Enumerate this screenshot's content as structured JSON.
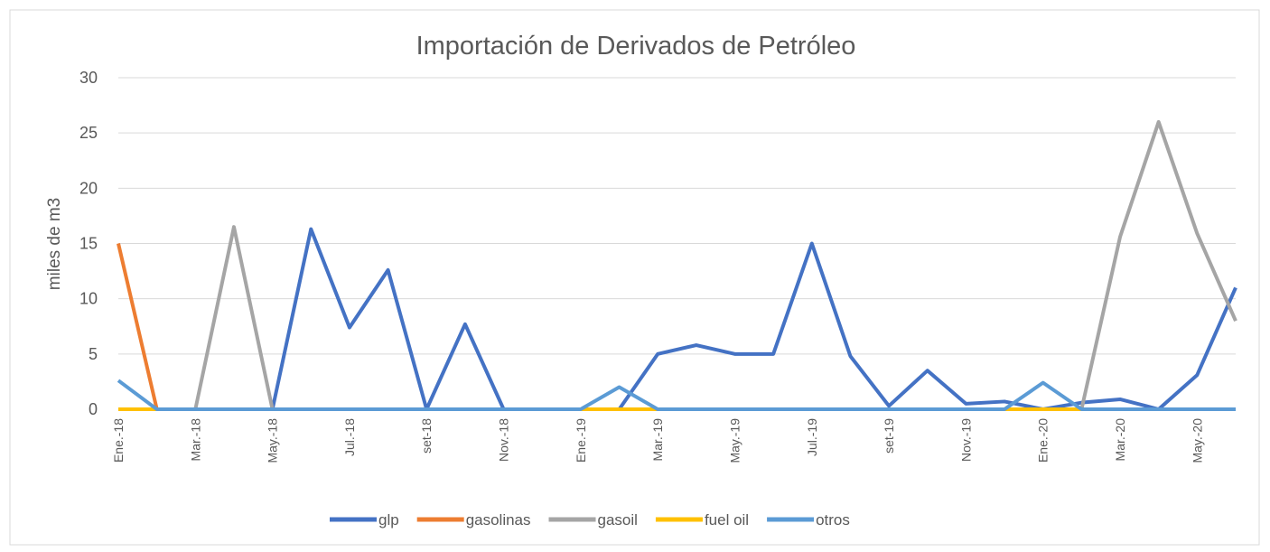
{
  "chart_data": {
    "type": "line",
    "title": "Importación de Derivados de Petróleo",
    "y_label": "miles de m3",
    "categories": [
      "Ene.-18",
      null,
      "Mar.-18",
      null,
      "May.-18",
      null,
      "Jul.-18",
      null,
      "set-18",
      null,
      "Nov.-18",
      null,
      "Ene.-19",
      null,
      "Mar.-19",
      null,
      "May.-19",
      null,
      "Jul.-19",
      null,
      "set-19",
      null,
      "Nov.-19",
      null,
      "Ene.-20",
      null,
      "Mar.-20",
      null,
      "May.-20",
      null
    ],
    "series": [
      {
        "name": "glp",
        "color": "#4472c4",
        "values": [
          0,
          0,
          0,
          0,
          0,
          16.3,
          7.4,
          12.6,
          0,
          7.7,
          0,
          0,
          0,
          0,
          5.0,
          5.8,
          5.0,
          5.0,
          15.0,
          4.8,
          0.3,
          3.5,
          0.5,
          0.7,
          0,
          0.6,
          0.9,
          0,
          3.1,
          11.0
        ]
      },
      {
        "name": "gasolinas",
        "color": "#ed7d31",
        "values": [
          15,
          0,
          0,
          0,
          0,
          0,
          0,
          0,
          0,
          0,
          0,
          0,
          0,
          0,
          0,
          0,
          0,
          0,
          0,
          0,
          0,
          0,
          0,
          0,
          0,
          0,
          0,
          0,
          0,
          0
        ]
      },
      {
        "name": "gasoil",
        "color": "#a5a5a5",
        "values": [
          0,
          0,
          0,
          16.5,
          0,
          0,
          0,
          0,
          0,
          0,
          0,
          0,
          0,
          0,
          0,
          0,
          0,
          0,
          0,
          0,
          0,
          0,
          0,
          0,
          0,
          0,
          15.6,
          26.0,
          15.9,
          8.0
        ]
      },
      {
        "name": "fuel oil",
        "color": "#ffc000",
        "values": [
          0,
          0,
          0,
          0,
          0,
          0,
          0,
          0,
          0,
          0,
          0,
          0,
          0,
          0,
          0,
          0,
          0,
          0,
          0,
          0,
          0,
          0,
          0,
          0,
          0,
          0,
          0,
          0,
          0,
          0
        ]
      },
      {
        "name": "otros",
        "color": "#5b9bd5",
        "values": [
          2.6,
          0,
          0,
          0,
          0,
          0,
          0,
          0,
          0,
          0,
          0,
          0,
          0,
          2.0,
          0,
          0,
          0,
          0,
          0,
          0,
          0,
          0,
          0,
          0,
          2.4,
          0,
          0,
          0,
          0,
          0
        ]
      }
    ],
    "ylim": [
      0,
      30
    ],
    "yticks": [
      0,
      5,
      10,
      15,
      20,
      25,
      30
    ],
    "grid": true,
    "legend": "bottom"
  }
}
